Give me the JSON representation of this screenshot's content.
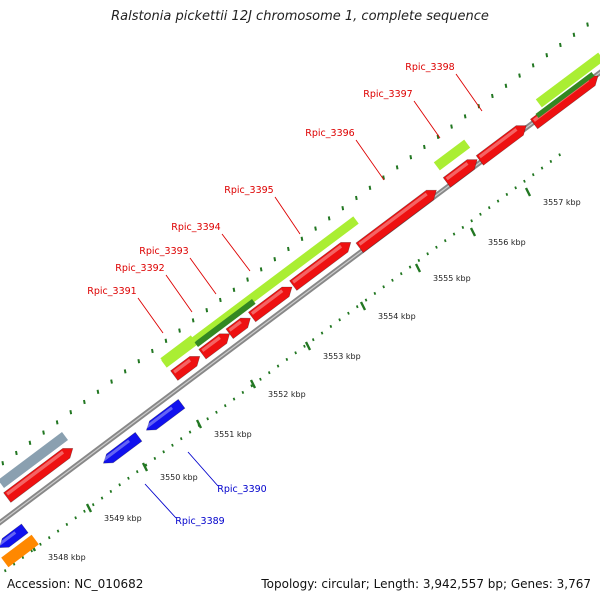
{
  "header": {
    "title": "Ralstonia pickettii 12J chromosome 1, complete sequence"
  },
  "footer": {
    "accession": "Accession: NC_010682",
    "summary": "Topology: circular; Length: 3,942,557 bp; Genes: 3,767"
  },
  "colors": {
    "forward_gene": "#ee1111",
    "reverse_gene": "#1111ee",
    "feature_light": "#aaee33",
    "feature_dark": "#338822",
    "feature_grey": "#8aa0b0",
    "feature_orange": "#ff8800",
    "backbone": "#888888",
    "tick": "#227722",
    "forward_label": "#dd0000",
    "reverse_label": "#0000cc"
  },
  "scale": {
    "unit": "kbp",
    "ticks": [
      3548,
      3549,
      3550,
      3551,
      3552,
      3553,
      3554,
      3555,
      3556,
      3557
    ]
  },
  "genes": {
    "forward": [
      "Rpic_3391",
      "Rpic_3392",
      "Rpic_3393",
      "Rpic_3394",
      "Rpic_3395",
      "Rpic_3396",
      "Rpic_3397",
      "Rpic_3398"
    ],
    "reverse": [
      "Rpic_3389",
      "Rpic_3390"
    ]
  }
}
